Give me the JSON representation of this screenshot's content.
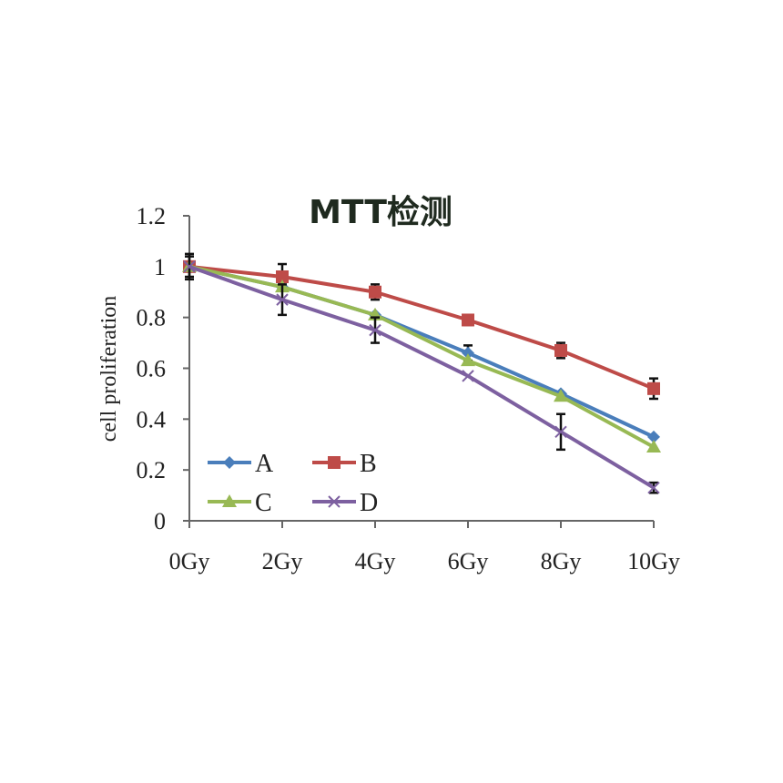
{
  "chart_data": {
    "type": "line",
    "title": "MTT检测",
    "ylabel": "cell proliferation",
    "xlabel": "",
    "categories": [
      "0Gy",
      "2Gy",
      "4Gy",
      "6Gy",
      "8Gy",
      "10Gy"
    ],
    "ylim": [
      0,
      1.2
    ],
    "yticks": [
      "0",
      "0.2",
      "0.4",
      "0.6",
      "0.8",
      "1",
      "1.2"
    ],
    "legend_position": "bottom-left",
    "grid": false,
    "series": [
      {
        "name": "A",
        "color": "#4a7ebb",
        "marker": "diamond",
        "values": [
          1.0,
          0.92,
          0.81,
          0.66,
          0.5,
          0.33
        ],
        "errors": [
          0,
          0,
          0,
          0.03,
          0,
          0
        ]
      },
      {
        "name": "B",
        "color": "#be4b48",
        "marker": "square",
        "values": [
          1.0,
          0.96,
          0.9,
          0.79,
          0.67,
          0.52
        ],
        "errors": [
          0.04,
          0.05,
          0.03,
          0.02,
          0.03,
          0.04
        ]
      },
      {
        "name": "C",
        "color": "#98b954",
        "marker": "triangle",
        "values": [
          1.0,
          0.92,
          0.81,
          0.63,
          0.49,
          0.29
        ],
        "errors": [
          0,
          0,
          0,
          0,
          0,
          0
        ]
      },
      {
        "name": "D",
        "color": "#7d60a0",
        "marker": "x",
        "values": [
          1.0,
          0.87,
          0.75,
          0.57,
          0.35,
          0.13
        ],
        "errors": [
          0.05,
          0.06,
          0.05,
          0,
          0.07,
          0.02
        ]
      }
    ]
  }
}
